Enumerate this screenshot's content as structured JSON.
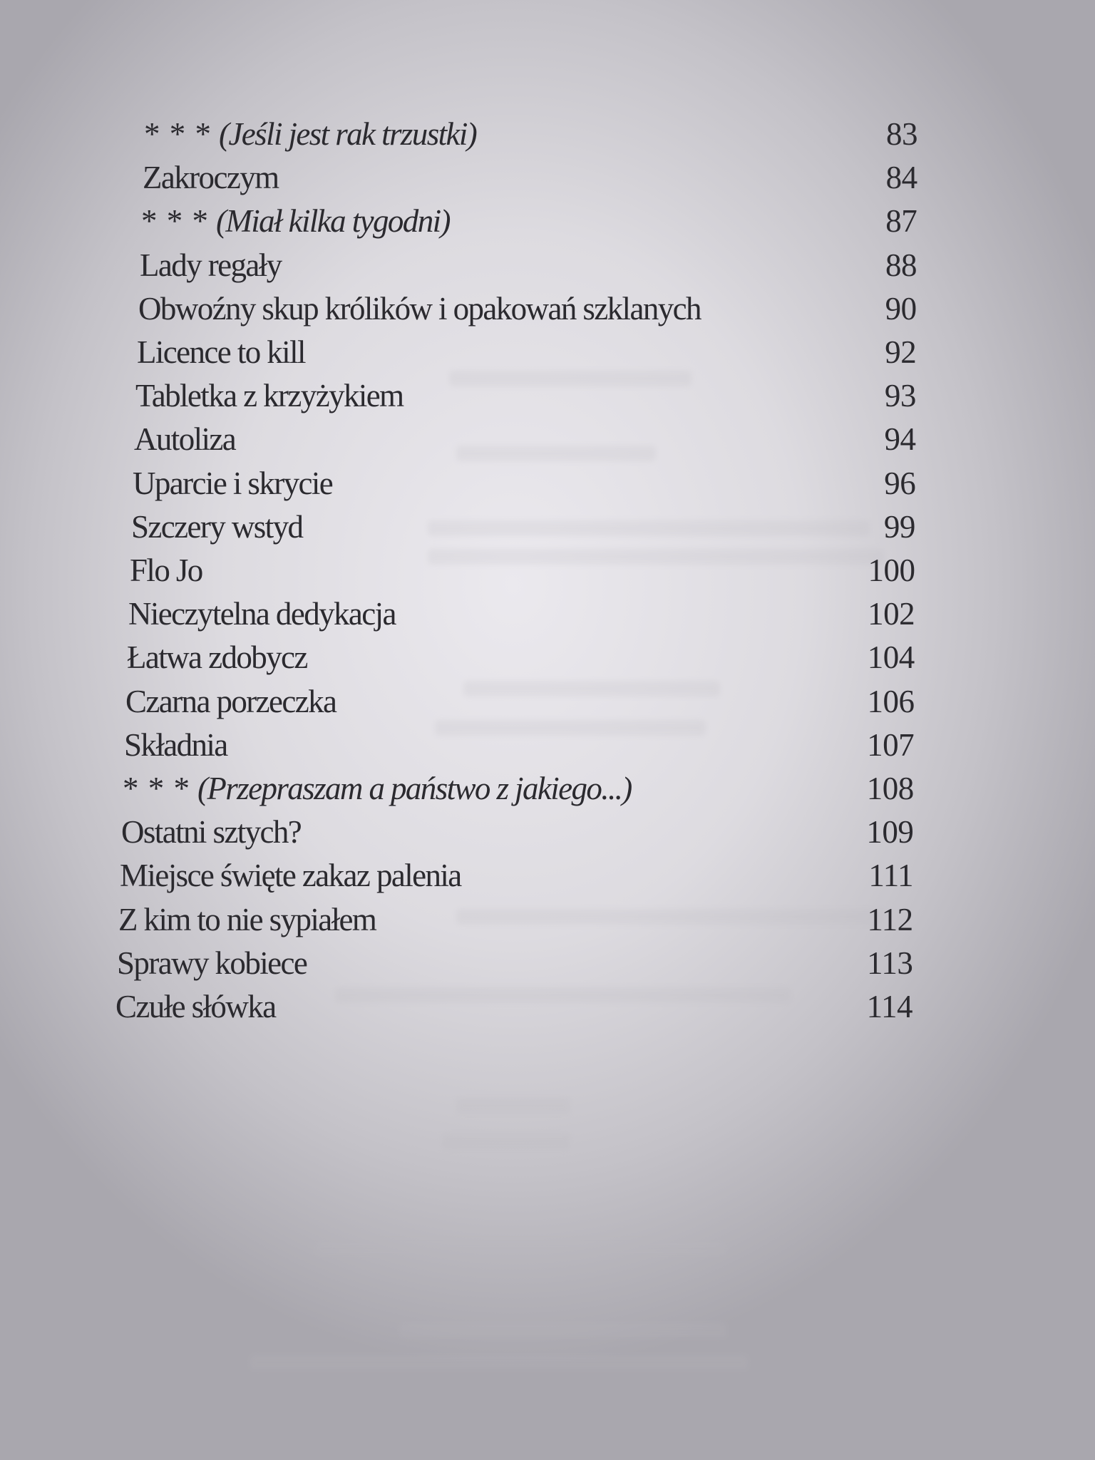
{
  "toc": {
    "entries": [
      {
        "prefix": "* * *",
        "title": "(Jeśli jest rak trzustki)",
        "italic": true,
        "page": "83"
      },
      {
        "prefix": "",
        "title": "Zakroczym",
        "italic": false,
        "page": "84"
      },
      {
        "prefix": "* * *",
        "title": "(Miał kilka tygodni)",
        "italic": true,
        "page": "87"
      },
      {
        "prefix": "",
        "title": "Lady regały",
        "italic": false,
        "page": "88"
      },
      {
        "prefix": "",
        "title": "Obwoźny skup królików i opakowań szklanych",
        "italic": false,
        "page": "90"
      },
      {
        "prefix": "",
        "title": "Licence to kill",
        "italic": false,
        "page": "92"
      },
      {
        "prefix": "",
        "title": "Tabletka z krzyżykiem",
        "italic": false,
        "page": "93"
      },
      {
        "prefix": "",
        "title": "Autoliza",
        "italic": false,
        "page": "94"
      },
      {
        "prefix": "",
        "title": "Uparcie i skrycie",
        "italic": false,
        "page": "96"
      },
      {
        "prefix": "",
        "title": "Szczery wstyd",
        "italic": false,
        "page": "99"
      },
      {
        "prefix": "",
        "title": "Flo Jo",
        "italic": false,
        "page": "100"
      },
      {
        "prefix": "",
        "title": "Nieczytelna dedykacja",
        "italic": false,
        "page": "102"
      },
      {
        "prefix": "",
        "title": "Łatwa zdobycz",
        "italic": false,
        "page": "104"
      },
      {
        "prefix": "",
        "title": "Czarna porzeczka",
        "italic": false,
        "page": "106"
      },
      {
        "prefix": "",
        "title": "Składnia",
        "italic": false,
        "page": "107"
      },
      {
        "prefix": "* * *",
        "title": "(Przepraszam a państwo z jakiego...)",
        "italic": true,
        "page": "108"
      },
      {
        "prefix": "",
        "title": "Ostatni sztych?",
        "italic": false,
        "page": "109"
      },
      {
        "prefix": "",
        "title": "Miejsce święte zakaz palenia",
        "italic": false,
        "page": "111"
      },
      {
        "prefix": "",
        "title": "Z kim to nie sypiałem",
        "italic": false,
        "page": "112"
      },
      {
        "prefix": "",
        "title": "Sprawy kobiece",
        "italic": false,
        "page": "113"
      },
      {
        "prefix": "",
        "title": "Czułe słówka",
        "italic": false,
        "page": "114"
      }
    ]
  }
}
